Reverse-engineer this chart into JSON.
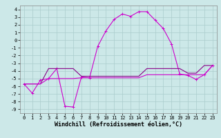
{
  "xlabel": "Windchill (Refroidissement éolien,°C)",
  "background_color": "#cce8e8",
  "grid_color": "#aacccc",
  "xlim": [
    -0.5,
    23.5
  ],
  "ylim": [
    -9.5,
    4.5
  ],
  "xticks": [
    0,
    1,
    2,
    3,
    4,
    5,
    6,
    7,
    8,
    9,
    10,
    11,
    12,
    13,
    14,
    15,
    16,
    17,
    18,
    19,
    20,
    21,
    22,
    23
  ],
  "yticks": [
    -9,
    -8,
    -7,
    -6,
    -5,
    -4,
    -3,
    -2,
    -1,
    0,
    1,
    2,
    3,
    4
  ],
  "series": [
    {
      "x": [
        0,
        1,
        2,
        3,
        4,
        5,
        6,
        7,
        8,
        9,
        10,
        11,
        12,
        13,
        14,
        15,
        16,
        17,
        18,
        19,
        20,
        21,
        22,
        23
      ],
      "y": [
        -5.7,
        -6.9,
        -5.2,
        -5.0,
        -3.7,
        -8.6,
        -8.7,
        -4.8,
        -4.9,
        -0.8,
        1.2,
        2.7,
        3.4,
        3.1,
        3.7,
        3.7,
        2.6,
        1.5,
        -0.5,
        -4.4,
        -4.6,
        -5.1,
        -4.5,
        -3.3
      ],
      "color": "#cc00cc",
      "marker": "+",
      "linewidth": 0.8,
      "markersize": 3
    },
    {
      "x": [
        0,
        1,
        2,
        3,
        4,
        5,
        6,
        7,
        8,
        9,
        10,
        11,
        12,
        13,
        14,
        15,
        16,
        17,
        18,
        19,
        20,
        21,
        22,
        23
      ],
      "y": [
        -5.7,
        -5.7,
        -5.7,
        -3.7,
        -3.7,
        -3.7,
        -3.7,
        -4.7,
        -4.7,
        -4.7,
        -4.7,
        -4.7,
        -4.7,
        -4.7,
        -4.7,
        -3.7,
        -3.7,
        -3.7,
        -3.7,
        -3.7,
        -4.3,
        -4.3,
        -3.3,
        -3.3
      ],
      "color": "#880088",
      "marker": null,
      "linewidth": 0.8,
      "markersize": 0
    },
    {
      "x": [
        0,
        1,
        2,
        3,
        4,
        5,
        6,
        7,
        8,
        9,
        10,
        11,
        12,
        13,
        14,
        15,
        16,
        17,
        18,
        19,
        20,
        21,
        22,
        23
      ],
      "y": [
        -5.7,
        -5.7,
        -5.7,
        -5.0,
        -5.0,
        -5.0,
        -5.0,
        -4.9,
        -4.9,
        -4.9,
        -4.9,
        -4.9,
        -4.9,
        -4.9,
        -4.9,
        -4.5,
        -4.5,
        -4.5,
        -4.5,
        -4.5,
        -4.5,
        -4.5,
        -4.5,
        -3.3
      ],
      "color": "#cc00cc",
      "marker": null,
      "linewidth": 0.8,
      "markersize": 0
    }
  ],
  "title_fontsize": 6,
  "axis_fontsize": 6,
  "tick_fontsize": 5
}
